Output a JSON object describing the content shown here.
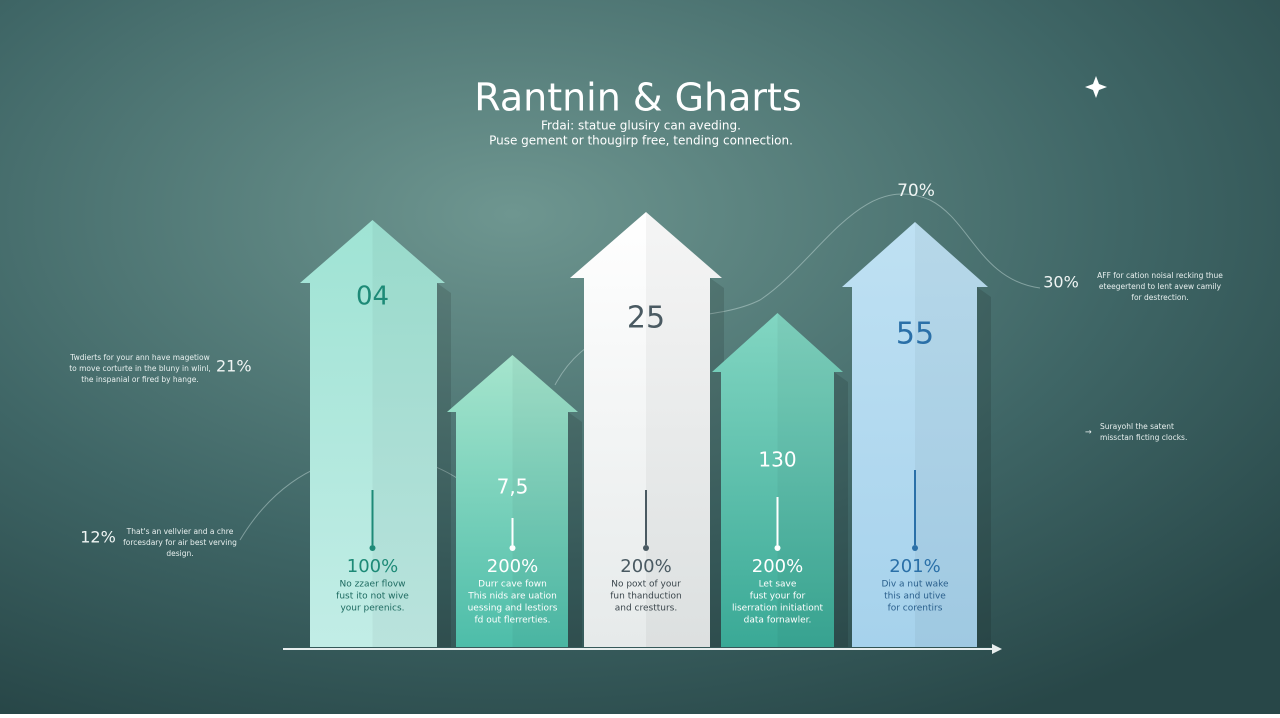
{
  "header": {
    "title": "Rantnin & Gharts",
    "subtitle": [
      "Frdai: statue glusiry can aveding.",
      "Puse gement or thougirp free, tending connection."
    ]
  },
  "arrows": [
    {
      "number": "04",
      "percent": "100%",
      "caption": [
        "No zzaer flovw",
        "fust ito not wive",
        "your perenics."
      ]
    },
    {
      "number": "7,5",
      "percent": "200%",
      "caption": [
        "Durr cave fown",
        "This nids are uation",
        "uessing and lestiors",
        "fd out flerrerties."
      ]
    },
    {
      "number": "25",
      "percent": "200%",
      "caption": [
        "No poxt of your",
        "fun thanduction",
        "and crestturs."
      ]
    },
    {
      "number": "130",
      "percent": "200%",
      "caption": [
        "Let save",
        "fust your for",
        "liserration initiationt",
        "data fornawler."
      ]
    },
    {
      "number": "55",
      "percent": "201%",
      "caption": [
        "Div a nut wake",
        "this and utive",
        "for corentirs"
      ]
    }
  ],
  "notes": {
    "left_upper": {
      "percent": "21%",
      "text": [
        "Twdierts for your ann have magetiow",
        "to move corturte in the bluny in wlinl,",
        "the inspanial or fired by hange."
      ]
    },
    "left_lower": {
      "percent": "12%",
      "text": [
        "That's an vellvier and a chre",
        "forcesdary for air best verving",
        "design."
      ]
    },
    "top_right": {
      "percent": "70%"
    },
    "right_upper": {
      "percent": "30%",
      "text": [
        "AFF for cation noisal recking thue",
        "eteegertend to lent avew camily",
        "for destrection."
      ]
    },
    "right_lower": {
      "text": [
        "Surayohl the satent",
        "missctan ficting clocks."
      ]
    }
  }
}
